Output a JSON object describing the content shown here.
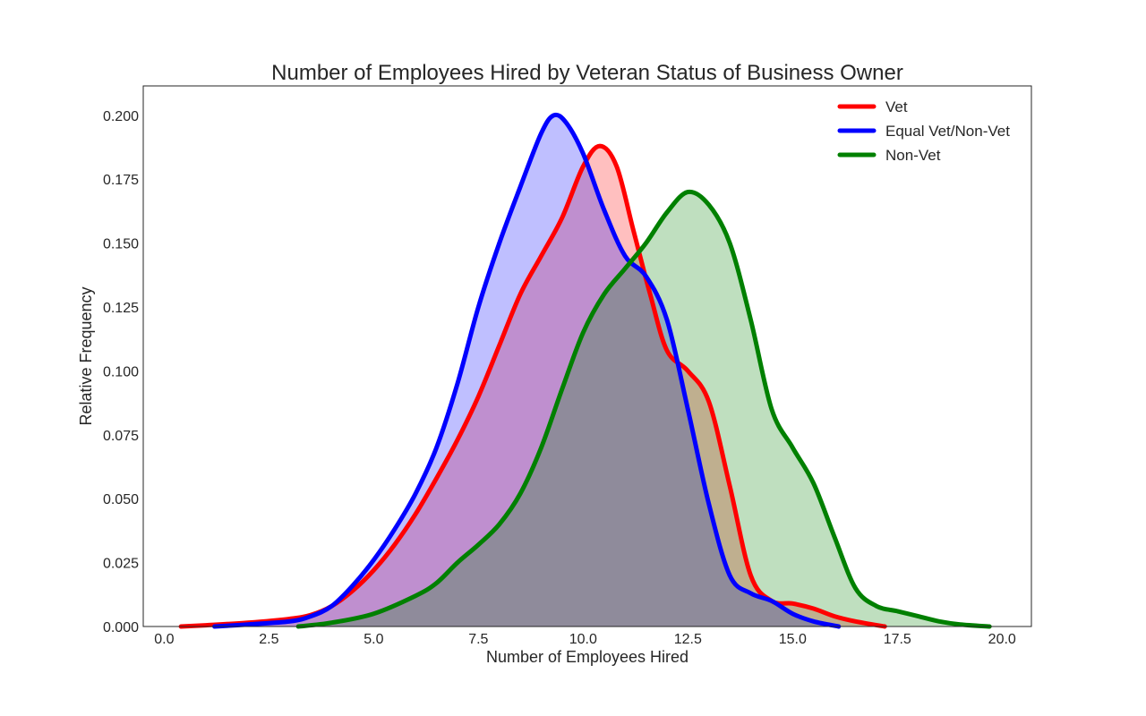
{
  "chart_data": {
    "type": "area",
    "title": "Number of Employees Hired by Veteran Status of Business Owner",
    "xlabel": "Number of Employees Hired",
    "ylabel": "Relative Frequency",
    "xlim": [
      -0.5,
      20.7
    ],
    "ylim": [
      0,
      0.2115
    ],
    "xticks": [
      0.0,
      2.5,
      5.0,
      7.5,
      10.0,
      12.5,
      15.0,
      17.5,
      20.0
    ],
    "xtick_labels": [
      "0.0",
      "2.5",
      "5.0",
      "7.5",
      "10.0",
      "12.5",
      "15.0",
      "17.5",
      "20.0"
    ],
    "yticks": [
      0.0,
      0.025,
      0.05,
      0.075,
      0.1,
      0.125,
      0.15,
      0.175,
      0.2
    ],
    "ytick_labels": [
      "0.000",
      "0.025",
      "0.050",
      "0.075",
      "0.100",
      "0.125",
      "0.150",
      "0.175",
      "0.200"
    ],
    "grid": false,
    "legend_position": "top-right",
    "series": [
      {
        "name": "Vet",
        "color": "#ff0000",
        "fill_opacity": 0.25,
        "points": [
          [
            0.4,
            0
          ],
          [
            1,
            0.0005
          ],
          [
            2,
            0.0015
          ],
          [
            3,
            0.003
          ],
          [
            3.5,
            0.0045
          ],
          [
            4,
            0.008
          ],
          [
            4.5,
            0.014
          ],
          [
            5,
            0.022
          ],
          [
            5.5,
            0.032
          ],
          [
            6,
            0.044
          ],
          [
            6.5,
            0.058
          ],
          [
            7,
            0.073
          ],
          [
            7.5,
            0.09
          ],
          [
            8,
            0.11
          ],
          [
            8.5,
            0.13
          ],
          [
            9,
            0.145
          ],
          [
            9.5,
            0.16
          ],
          [
            10,
            0.18
          ],
          [
            10.4,
            0.188
          ],
          [
            10.8,
            0.18
          ],
          [
            11.2,
            0.155
          ],
          [
            11.6,
            0.13
          ],
          [
            12,
            0.108
          ],
          [
            12.5,
            0.1
          ],
          [
            13,
            0.088
          ],
          [
            13.5,
            0.055
          ],
          [
            14,
            0.02
          ],
          [
            14.5,
            0.01
          ],
          [
            15,
            0.009
          ],
          [
            15.5,
            0.007
          ],
          [
            16,
            0.004
          ],
          [
            16.5,
            0.002
          ],
          [
            17.2,
            0
          ]
        ]
      },
      {
        "name": "Equal Vet/Non-Vet",
        "color": "#0000ff",
        "fill_opacity": 0.25,
        "points": [
          [
            1.2,
            0
          ],
          [
            2,
            0.0008
          ],
          [
            3,
            0.002
          ],
          [
            3.5,
            0.004
          ],
          [
            4,
            0.008
          ],
          [
            4.5,
            0.016
          ],
          [
            5,
            0.026
          ],
          [
            5.5,
            0.038
          ],
          [
            6,
            0.052
          ],
          [
            6.5,
            0.07
          ],
          [
            7,
            0.095
          ],
          [
            7.5,
            0.125
          ],
          [
            8,
            0.15
          ],
          [
            8.5,
            0.172
          ],
          [
            9,
            0.193
          ],
          [
            9.3,
            0.2
          ],
          [
            9.6,
            0.197
          ],
          [
            10,
            0.185
          ],
          [
            10.5,
            0.163
          ],
          [
            11,
            0.145
          ],
          [
            11.5,
            0.137
          ],
          [
            12,
            0.12
          ],
          [
            12.5,
            0.085
          ],
          [
            13,
            0.048
          ],
          [
            13.5,
            0.02
          ],
          [
            14,
            0.013
          ],
          [
            14.5,
            0.01
          ],
          [
            15,
            0.005
          ],
          [
            15.5,
            0.002
          ],
          [
            16.1,
            0
          ]
        ]
      },
      {
        "name": "Non-Vet",
        "color": "#008000",
        "fill_opacity": 0.25,
        "points": [
          [
            3.2,
            0
          ],
          [
            4,
            0.0015
          ],
          [
            5,
            0.005
          ],
          [
            6,
            0.012
          ],
          [
            6.5,
            0.017
          ],
          [
            7,
            0.025
          ],
          [
            7.5,
            0.032
          ],
          [
            8,
            0.04
          ],
          [
            8.5,
            0.052
          ],
          [
            9,
            0.07
          ],
          [
            9.5,
            0.093
          ],
          [
            10,
            0.115
          ],
          [
            10.5,
            0.13
          ],
          [
            11,
            0.14
          ],
          [
            11.5,
            0.15
          ],
          [
            12,
            0.162
          ],
          [
            12.5,
            0.17
          ],
          [
            13,
            0.165
          ],
          [
            13.5,
            0.15
          ],
          [
            14,
            0.12
          ],
          [
            14.5,
            0.085
          ],
          [
            15,
            0.07
          ],
          [
            15.5,
            0.056
          ],
          [
            16,
            0.035
          ],
          [
            16.5,
            0.015
          ],
          [
            17,
            0.008
          ],
          [
            17.5,
            0.006
          ],
          [
            18,
            0.004
          ],
          [
            18.5,
            0.002
          ],
          [
            19,
            0.0008
          ],
          [
            19.7,
            0
          ]
        ]
      }
    ]
  }
}
